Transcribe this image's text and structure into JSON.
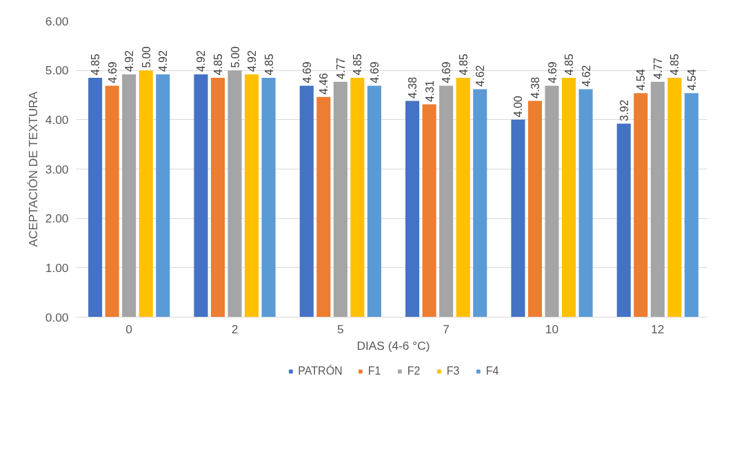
{
  "chart_data": {
    "type": "bar",
    "xlabel": "DIAS (4-6 °C)",
    "ylabel": "ACEPTACIÓN DE TEXTURA",
    "categories": [
      "0",
      "2",
      "5",
      "7",
      "10",
      "12"
    ],
    "ylim": [
      0,
      6
    ],
    "yticks": [
      {
        "value": 0,
        "label": "0.00"
      },
      {
        "value": 1,
        "label": "1.00"
      },
      {
        "value": 2,
        "label": "2.00"
      },
      {
        "value": 3,
        "label": "3.00"
      },
      {
        "value": 4,
        "label": "4.00"
      },
      {
        "value": 5,
        "label": "5.00"
      },
      {
        "value": 6,
        "label": "6.00"
      }
    ],
    "grid": "y",
    "legend": "bottom",
    "series": [
      {
        "name": "PATRÓN",
        "color": "#4472c4",
        "values": [
          4.85,
          4.92,
          4.69,
          4.38,
          4.0,
          3.92
        ],
        "value_labels": [
          "4.85",
          "4.92",
          "4.69",
          "4.38",
          "4.00",
          "3.92"
        ]
      },
      {
        "name": "F1",
        "color": "#ed7d31",
        "values": [
          4.69,
          4.85,
          4.46,
          4.31,
          4.38,
          4.54
        ],
        "value_labels": [
          "4.69",
          "4.85",
          "4.46",
          "4.31",
          "4.38",
          "4.54"
        ]
      },
      {
        "name": "F2",
        "color": "#a5a5a5",
        "values": [
          4.92,
          5.0,
          4.77,
          4.69,
          4.69,
          4.77
        ],
        "value_labels": [
          "4.92",
          "5.00",
          "4.77",
          "4.69",
          "4.69",
          "4.77"
        ]
      },
      {
        "name": "F3",
        "color": "#ffc000",
        "values": [
          5.0,
          4.92,
          4.85,
          4.85,
          4.85,
          4.85
        ],
        "value_labels": [
          "5.00",
          "4.92",
          "4.85",
          "4.85",
          "4.85",
          "4.85"
        ]
      },
      {
        "name": "F4",
        "color": "#5b9bd5",
        "values": [
          4.92,
          4.85,
          4.69,
          4.62,
          4.62,
          4.54
        ],
        "value_labels": [
          "4.92",
          "4.85",
          "4.69",
          "4.62",
          "4.62",
          "4.54"
        ]
      }
    ]
  }
}
